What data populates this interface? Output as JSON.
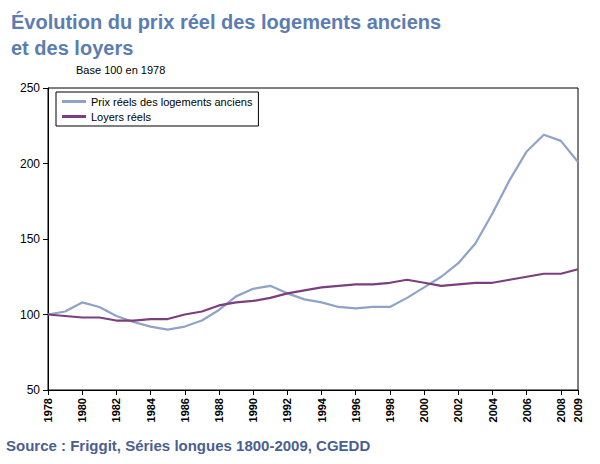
{
  "chart_data": {
    "type": "line",
    "title": "Évolution du prix réel des logements anciens\net des loyers",
    "ylabel": "Base 100 en 1978",
    "source": "Source : Friggit, Séries longues 1800-2009, CGEDD",
    "x": [
      1978,
      1979,
      1980,
      1981,
      1982,
      1983,
      1984,
      1985,
      1986,
      1987,
      1988,
      1989,
      1990,
      1991,
      1992,
      1993,
      1994,
      1995,
      1996,
      1997,
      1998,
      1999,
      2000,
      2001,
      2002,
      2003,
      2004,
      2005,
      2006,
      2007,
      2008,
      2009
    ],
    "series": [
      {
        "name": "Prix réels des logements anciens",
        "color": "#8fa3c8",
        "values": [
          100,
          102,
          108,
          105,
          99,
          95,
          92,
          90,
          92,
          96,
          103,
          112,
          117,
          119,
          114,
          110,
          108,
          105,
          104,
          105,
          105,
          111,
          118,
          125,
          134,
          147,
          167,
          189,
          208,
          219,
          215,
          201
        ]
      },
      {
        "name": "Loyers réels",
        "color": "#7b3f7f",
        "values": [
          100,
          99,
          98,
          98,
          96,
          96,
          97,
          97,
          100,
          102,
          106,
          108,
          109,
          111,
          114,
          116,
          118,
          119,
          120,
          120,
          121,
          123,
          121,
          119,
          120,
          121,
          121,
          123,
          125,
          127,
          127,
          130
        ]
      }
    ],
    "xlim": [
      1978,
      2009
    ],
    "xticks": [
      1978,
      1980,
      1982,
      1984,
      1986,
      1988,
      1990,
      1992,
      1994,
      1996,
      1998,
      2000,
      2002,
      2004,
      2006,
      2008
    ],
    "ylim": [
      50,
      250
    ],
    "yticks": [
      50,
      100,
      150,
      200,
      250
    ],
    "grid": false,
    "legend": "upper left"
  }
}
